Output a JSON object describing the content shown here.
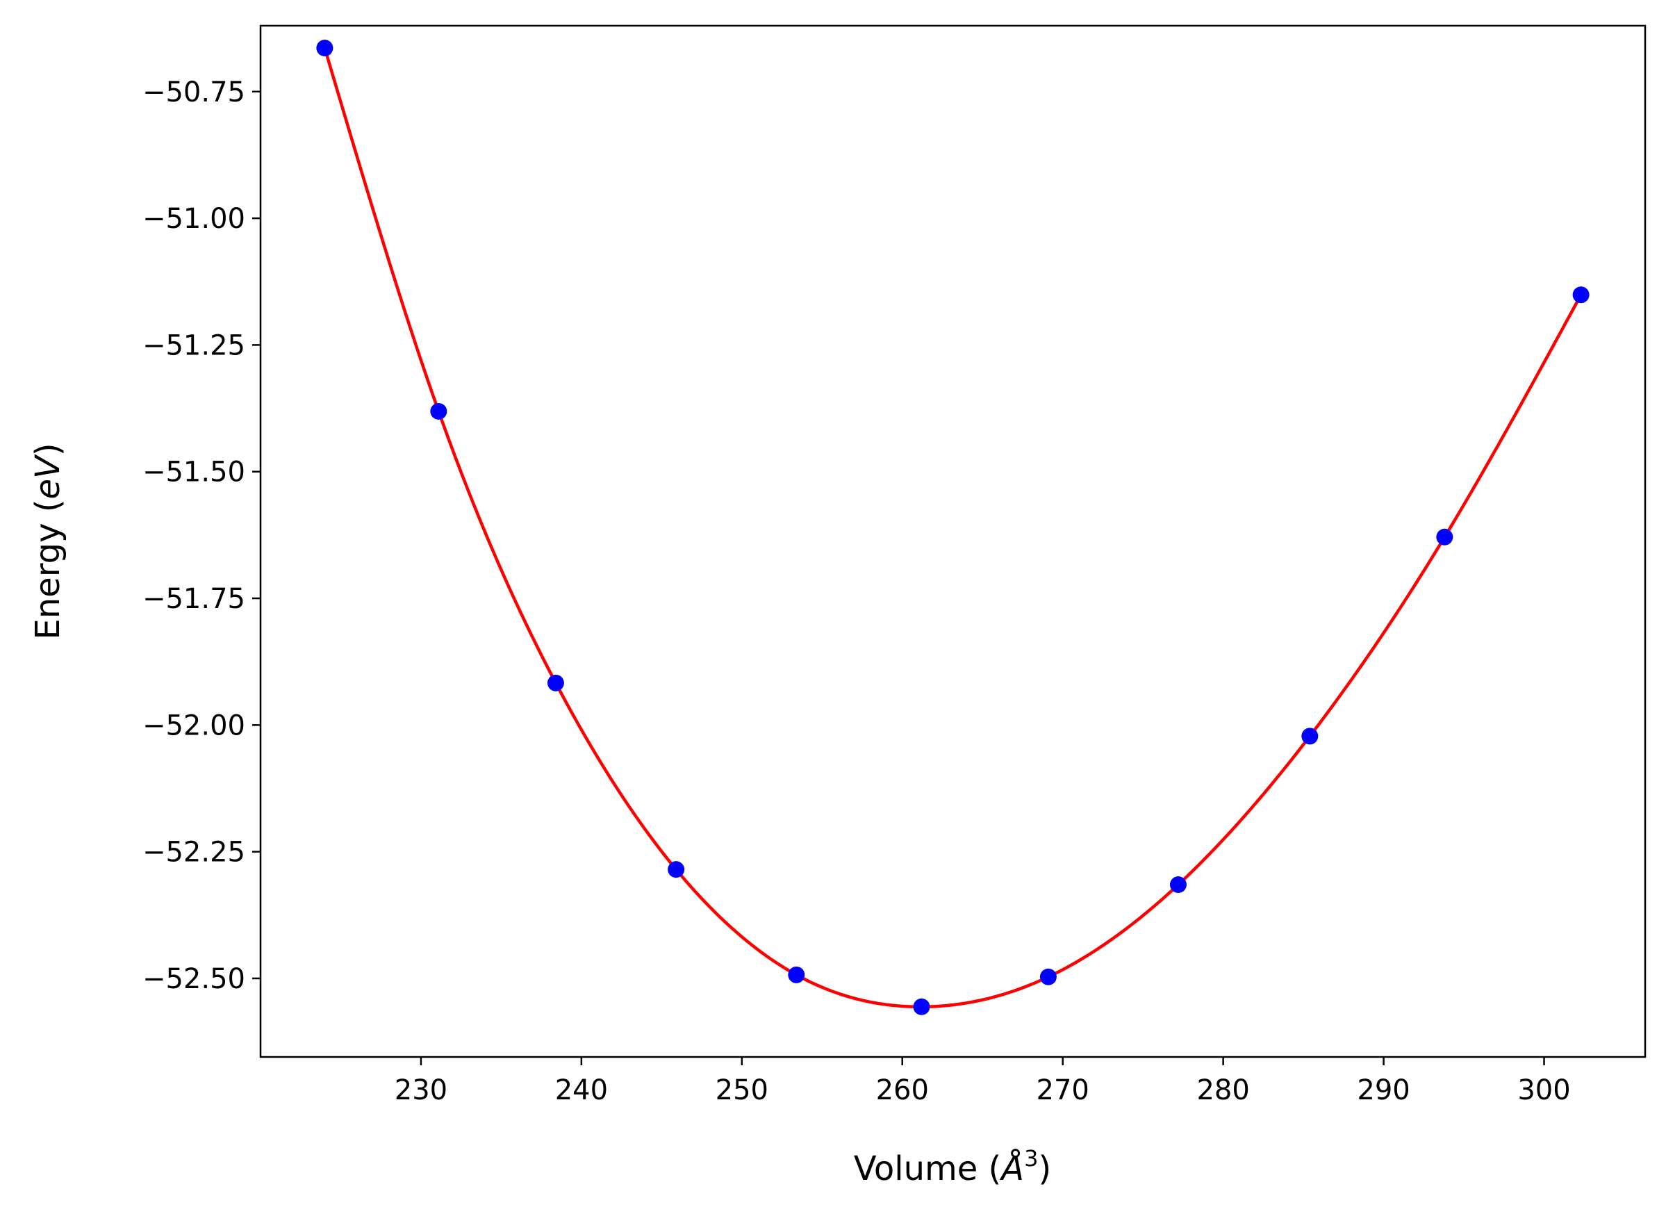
{
  "chart_data": {
    "type": "scatter",
    "title": "",
    "xlabel_main": "Volume (",
    "xlabel_unit": "Å",
    "xlabel_exp": "3",
    "xlabel_close": ")",
    "ylabel_main": "Energy (",
    "ylabel_unit": "eV",
    "ylabel_close": ")",
    "xlim": [
      220.0,
      306.3
    ],
    "ylim": [
      -52.655,
      -50.62
    ],
    "xticks": [
      230,
      240,
      250,
      260,
      270,
      280,
      290,
      300
    ],
    "xtick_labels": [
      "230",
      "240",
      "250",
      "260",
      "270",
      "280",
      "290",
      "300"
    ],
    "yticks": [
      -50.75,
      -51.0,
      -51.25,
      -51.5,
      -51.75,
      -52.0,
      -52.25,
      -52.5
    ],
    "ytick_labels": [
      "−50.75",
      "−51.00",
      "−51.25",
      "−51.50",
      "−51.75",
      "−52.00",
      "−52.25",
      "−52.50"
    ],
    "grid": false,
    "series": [
      {
        "kind": "points",
        "color": "#0000ff",
        "x": [
          224.0,
          231.1,
          238.4,
          245.9,
          253.4,
          261.2,
          269.1,
          277.2,
          285.4,
          293.8,
          302.3
        ],
        "y": [
          -50.664,
          -51.381,
          -51.917,
          -52.285,
          -52.493,
          -52.556,
          -52.497,
          -52.315,
          -52.022,
          -51.629,
          -51.151
        ]
      },
      {
        "kind": "fit-line",
        "color": "#ff0000",
        "x": [
          224.0,
          231.1,
          238.4,
          245.9,
          253.4,
          261.2,
          269.1,
          277.2,
          285.4,
          293.8,
          302.3
        ],
        "y": [
          -50.664,
          -51.381,
          -51.917,
          -52.285,
          -52.493,
          -52.556,
          -52.497,
          -52.315,
          -52.022,
          -51.629,
          -51.151
        ]
      }
    ]
  }
}
